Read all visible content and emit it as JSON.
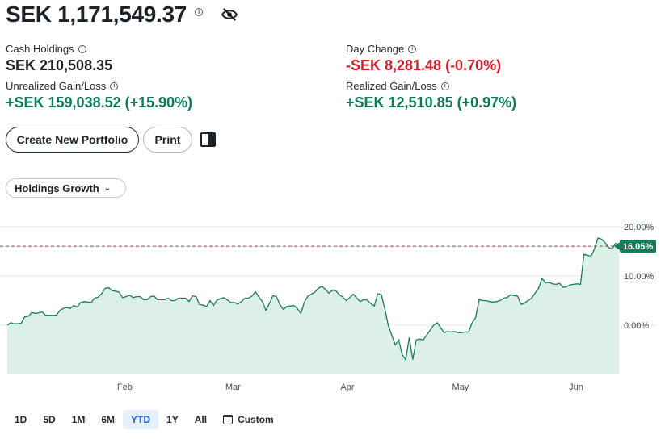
{
  "portfolio": {
    "total_value": "SEK 1,171,549.37",
    "cash_label": "Cash Holdings",
    "cash_value": "SEK 210,508.35",
    "day_change_label": "Day Change",
    "day_change_value": "-SEK 8,281.48 (-0.70%)",
    "unrealized_label": "Unrealized Gain/Loss",
    "unrealized_value": "+SEK 159,038.52 (+15.90%)",
    "realized_label": "Realized Gain/Loss",
    "realized_value": "+SEK 12,510.85 (+0.97%)",
    "info_icon": "ⓘ"
  },
  "actions": {
    "create_label": "Create New Portfolio",
    "print_label": "Print"
  },
  "view_selector": {
    "label": "Holdings Growth",
    "chevron": "⌄"
  },
  "colors": {
    "positive": "#0b7a5f",
    "negative": "#d5202b",
    "accent": "#0f69ff",
    "line": "#1a7a5e",
    "fill": "#d9eee6",
    "marker": "#1a7a5e"
  },
  "chart_data": {
    "type": "area",
    "y_tick_labels": [
      "20.00%",
      "10.00%",
      "0.00%"
    ],
    "y_ticks": [
      20,
      10,
      0
    ],
    "ylim": [
      -10,
      20
    ],
    "x_range": [
      0,
      1
    ],
    "month_labels": [
      "Feb",
      "Mar",
      "Apr",
      "May",
      "Jun"
    ],
    "month_positions": [
      0.192,
      0.369,
      0.556,
      0.741,
      0.93
    ],
    "current_value_label": "16.05%",
    "current_value": 16.05,
    "series": [
      {
        "values": [
          0.0,
          0.5,
          0.3,
          0.3,
          0.4,
          1.7,
          1.8,
          2.6,
          2.4,
          2.5,
          2.7,
          2.0,
          2.0,
          2.0,
          2.0,
          3.0,
          3.4,
          3.6,
          3.4,
          4.0,
          3.7,
          4.6,
          4.8,
          4.7,
          4.6,
          5.5,
          5.7,
          6.4,
          7.5,
          7.6,
          7.0,
          6.9,
          6.7,
          5.6,
          5.8,
          6.1,
          5.6,
          5.8,
          5.8,
          5.2,
          5.2,
          5.8,
          5.9,
          5.2,
          5.2,
          5.2,
          5.5,
          5.0,
          5.0,
          5.5,
          5.5,
          5.5,
          4.8,
          6.0,
          5.8,
          4.2,
          4.1,
          3.8,
          5.0,
          4.0,
          5.1,
          5.4,
          5.6,
          5.1,
          4.6,
          4.6,
          4.3,
          4.8,
          5.5,
          5.5,
          5.9,
          6.8,
          5.7,
          4.8,
          3.0,
          4.4,
          6.0,
          5.8,
          4.2,
          3.2,
          3.8,
          3.9,
          4.0,
          3.4,
          2.4,
          4.7,
          5.9,
          6.3,
          6.7,
          7.5,
          7.9,
          7.3,
          6.5,
          7.1,
          7.0,
          6.2,
          5.7,
          5.0,
          5.6,
          6.3,
          5.5,
          4.8,
          5.2,
          5.1,
          4.4,
          3.9,
          6.4,
          6.2,
          3.4,
          0.0,
          -2.0,
          -4.0,
          -3.0,
          -6.0,
          -7.0,
          -2.5,
          -7.0,
          -3.0,
          -2.8,
          -3.0,
          -2.0,
          -1.0,
          0.0,
          0.5,
          -0.5,
          -1.5,
          -1.3,
          -1.4,
          -1.3,
          -1.5,
          -1.5,
          -1.4,
          -1.4,
          0.5,
          1.5,
          5.2,
          5.0,
          5.0,
          4.8,
          4.7,
          4.8,
          5.0,
          5.5,
          5.6,
          6.2,
          6.0,
          5.9,
          4.2,
          4.5,
          5.0,
          5.5,
          6.5,
          7.5,
          9.5,
          8.6,
          8.7,
          8.4,
          8.3,
          8.5,
          7.7,
          7.8,
          8.2,
          8.3,
          8.4,
          8.3,
          14.4,
          14.2,
          14.0,
          15.5,
          17.7,
          17.5,
          16.8,
          15.8,
          15.5,
          16.6,
          16.2
        ]
      }
    ]
  },
  "time_ranges": [
    "1D",
    "5D",
    "1M",
    "6M",
    "YTD",
    "1Y",
    "All"
  ],
  "time_range_active": "YTD",
  "custom_label": "Custom"
}
